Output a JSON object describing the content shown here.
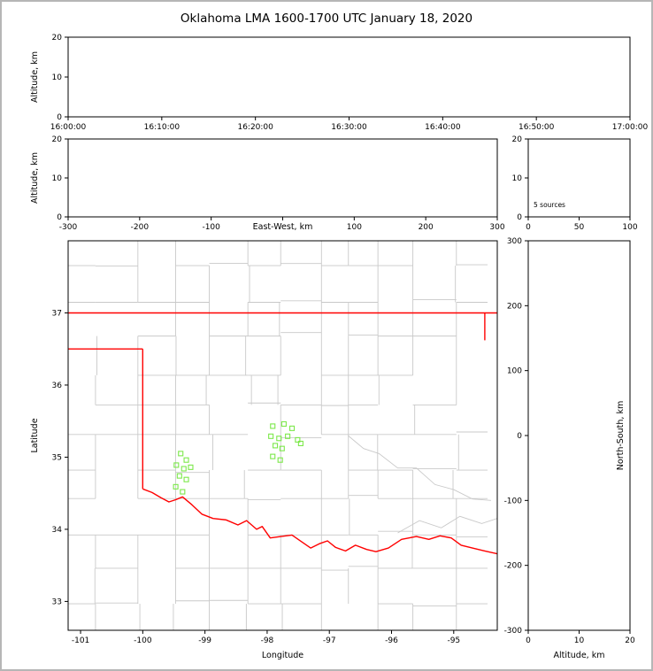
{
  "title": "Oklahoma LMA 1600-1700 UTC January 18, 2020",
  "colors": {
    "background": "#ffffff",
    "frame": "#b6b6b6",
    "axis": "#000000",
    "county_lines": "#c9c9c9",
    "state_border": "#ff0000",
    "station_marker": "#7ce84a"
  },
  "chart_data": [
    {
      "id": "time_height",
      "type": "scatter",
      "xlabel": "",
      "ylabel": "Altitude, km",
      "xlim": [
        0,
        6
      ],
      "x_ticks": [
        0,
        1,
        2,
        3,
        4,
        5,
        6
      ],
      "x_tick_labels": [
        "16:00:00",
        "16:10:00",
        "16:20:00",
        "16:30:00",
        "16:40:00",
        "16:50:00",
        "17:00:00"
      ],
      "ylim": [
        0,
        20
      ],
      "y_ticks": [
        0,
        10,
        20
      ],
      "y_tick_labels": [
        "0",
        "10",
        "20"
      ],
      "points": []
    },
    {
      "id": "ew_height",
      "type": "scatter",
      "xlabel": "East-West, km",
      "ylabel": "Altitude, km",
      "xlim": [
        -300,
        300
      ],
      "x_ticks": [
        -300,
        -200,
        -100,
        0,
        100,
        200,
        300
      ],
      "x_tick_labels": [
        "-300",
        "-200",
        "-100",
        "",
        "100",
        "200",
        "300"
      ],
      "ylim": [
        0,
        20
      ],
      "y_ticks": [
        0,
        10,
        20
      ],
      "y_tick_labels": [
        "0",
        "10",
        "20"
      ],
      "points": []
    },
    {
      "id": "altitude_histogram",
      "type": "histogram",
      "annotation": "5 sources",
      "xlabel": "",
      "ylabel": "",
      "xlim": [
        0,
        100
      ],
      "x_ticks": [
        0,
        50,
        100
      ],
      "x_tick_labels": [
        "0",
        "50",
        "100"
      ],
      "ylim": [
        0,
        20
      ],
      "y_ticks": [
        0,
        10,
        20
      ],
      "y_tick_labels": [
        "0",
        "10",
        "20"
      ],
      "bars": []
    },
    {
      "id": "plan_view_map",
      "type": "map_scatter",
      "xlabel": "Longitude",
      "ylabel": "Latitude",
      "xlim": [
        -101.2,
        -94.3
      ],
      "x_ticks": [
        -101,
        -100,
        -99,
        -98,
        -97,
        -96,
        -95
      ],
      "x_tick_labels": [
        "-101",
        "-100",
        "-99",
        "-98",
        "-97",
        "-96",
        "-95"
      ],
      "ylim": [
        32.6,
        38.0
      ],
      "y_ticks": [
        33,
        34,
        35,
        36,
        37
      ],
      "y_tick_labels": [
        "33",
        "34",
        "35",
        "36",
        "37"
      ],
      "stations": [
        [
          -97.91,
          35.43
        ],
        [
          -97.73,
          35.46
        ],
        [
          -97.6,
          35.4
        ],
        [
          -97.94,
          35.29
        ],
        [
          -97.81,
          35.26
        ],
        [
          -97.67,
          35.29
        ],
        [
          -97.51,
          35.24
        ],
        [
          -97.87,
          35.16
        ],
        [
          -97.76,
          35.12
        ],
        [
          -97.91,
          35.01
        ],
        [
          -97.79,
          34.96
        ],
        [
          -97.46,
          35.19
        ],
        [
          -99.39,
          35.05
        ],
        [
          -99.3,
          34.96
        ],
        [
          -99.46,
          34.89
        ],
        [
          -99.34,
          34.84
        ],
        [
          -99.23,
          34.86
        ],
        [
          -99.41,
          34.74
        ],
        [
          -99.3,
          34.69
        ],
        [
          -99.47,
          34.59
        ],
        [
          -99.36,
          34.52
        ]
      ],
      "state_border": [
        [
          [
            -101.2,
            37.0
          ],
          [
            -94.3,
            37.0
          ]
        ],
        [
          [
            -101.2,
            36.5
          ],
          [
            -100.0,
            36.5
          ]
        ],
        [
          [
            -100.0,
            36.5
          ],
          [
            -100.0,
            34.56
          ]
        ],
        [
          [
            -94.5,
            37.0
          ],
          [
            -94.5,
            36.62
          ]
        ],
        [
          [
            -100.0,
            34.56
          ],
          [
            -99.85,
            34.51
          ],
          [
            -99.71,
            34.44
          ],
          [
            -99.58,
            34.38
          ],
          [
            -99.47,
            34.41
          ],
          [
            -99.36,
            34.45
          ],
          [
            -99.21,
            34.34
          ],
          [
            -99.05,
            34.21
          ],
          [
            -98.87,
            34.15
          ],
          [
            -98.66,
            34.13
          ],
          [
            -98.47,
            34.06
          ],
          [
            -98.33,
            34.12
          ],
          [
            -98.17,
            34.0
          ],
          [
            -98.08,
            34.04
          ],
          [
            -97.95,
            33.88
          ],
          [
            -97.78,
            33.9
          ],
          [
            -97.6,
            33.92
          ],
          [
            -97.45,
            33.83
          ],
          [
            -97.3,
            33.74
          ],
          [
            -97.16,
            33.8
          ],
          [
            -97.03,
            33.84
          ],
          [
            -96.9,
            33.75
          ],
          [
            -96.74,
            33.7
          ],
          [
            -96.58,
            33.78
          ],
          [
            -96.4,
            33.72
          ],
          [
            -96.25,
            33.69
          ],
          [
            -96.05,
            33.74
          ],
          [
            -95.84,
            33.86
          ],
          [
            -95.6,
            33.9
          ],
          [
            -95.4,
            33.86
          ],
          [
            -95.22,
            33.91
          ],
          [
            -95.04,
            33.88
          ],
          [
            -94.88,
            33.78
          ],
          [
            -94.7,
            33.74
          ],
          [
            -94.5,
            33.7
          ],
          [
            -94.3,
            33.66
          ]
        ]
      ]
    },
    {
      "id": "ns_height",
      "type": "scatter",
      "xlabel": "Altitude, km",
      "ylabel": "",
      "ylabel_right": "North-South, km",
      "xlim": [
        0,
        20
      ],
      "x_ticks": [
        0,
        10,
        20
      ],
      "x_tick_labels": [
        "0",
        "10",
        "20"
      ],
      "ylim": [
        -300,
        300
      ],
      "y_ticks": [
        -300,
        -200,
        -100,
        0,
        100,
        200,
        300
      ],
      "y_tick_labels": [
        "-300",
        "-200",
        "-100",
        "0",
        "100",
        "200",
        "300"
      ],
      "points": []
    }
  ]
}
